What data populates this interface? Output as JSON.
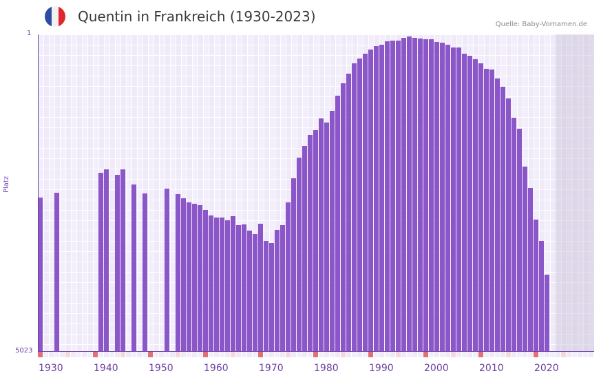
{
  "header": {
    "title": "Quentin in Frankreich (1930-2023)",
    "source": "Quelle: Baby-Vornamen.de",
    "flag_colors": [
      "#2f4da0",
      "#f2f2f2",
      "#e0262e"
    ]
  },
  "axes": {
    "y_title": "Platz",
    "y_top_label": "1",
    "y_bottom_label": "5023",
    "x_labels": [
      "1930",
      "1940",
      "1950",
      "1960",
      "1970",
      "1980",
      "1990",
      "2000",
      "2010",
      "2020"
    ]
  },
  "colors": {
    "bar": "#8b56c8",
    "decade_marker": "#e07078",
    "half_decade_marker": "#f5d8df",
    "axis": "#6a3fa0"
  },
  "chart_data": {
    "type": "bar",
    "title": "Quentin in Frankreich (1930-2023)",
    "xlabel": "",
    "ylabel": "Platz",
    "y_axis_inverted": true,
    "ylim": [
      5023,
      1
    ],
    "x_range": [
      1930,
      2030
    ],
    "grid": true,
    "note": "values are approximate ranks read from bar heights (1 = top, 5023 = bottom); missing years = no data",
    "x": [
      1930,
      1933,
      1941,
      1942,
      1944,
      1945,
      1947,
      1949,
      1953,
      1955,
      1956,
      1957,
      1958,
      1959,
      1960,
      1961,
      1962,
      1963,
      1964,
      1965,
      1966,
      1967,
      1968,
      1969,
      1970,
      1971,
      1972,
      1973,
      1974,
      1975,
      1976,
      1977,
      1978,
      1979,
      1980,
      1981,
      1982,
      1983,
      1984,
      1985,
      1986,
      1987,
      1988,
      1989,
      1990,
      1991,
      1992,
      1993,
      1994,
      1995,
      1996,
      1997,
      1998,
      1999,
      2000,
      2001,
      2002,
      2003,
      2004,
      2005,
      2006,
      2007,
      2008,
      2009,
      2010,
      2011,
      2012,
      2013,
      2014,
      2015,
      2016,
      2017,
      2018,
      2019,
      2020,
      2021,
      2022
    ],
    "values": [
      2590,
      2510,
      2190,
      2140,
      2230,
      2140,
      2380,
      2520,
      2450,
      2530,
      2600,
      2660,
      2690,
      2710,
      2780,
      2870,
      2900,
      2900,
      2950,
      2880,
      3030,
      3010,
      3110,
      3170,
      3000,
      3280,
      3310,
      3100,
      3030,
      2660,
      2280,
      1950,
      1770,
      1590,
      1520,
      1330,
      1400,
      1210,
      970,
      780,
      620,
      460,
      380,
      310,
      240,
      190,
      160,
      110,
      100,
      100,
      60,
      30,
      60,
      70,
      80,
      80,
      120,
      130,
      170,
      210,
      210,
      310,
      340,
      390,
      460,
      550,
      560,
      700,
      830,
      1020,
      1320,
      1500,
      2100,
      2440,
      2940,
      3280,
      3810
    ]
  }
}
